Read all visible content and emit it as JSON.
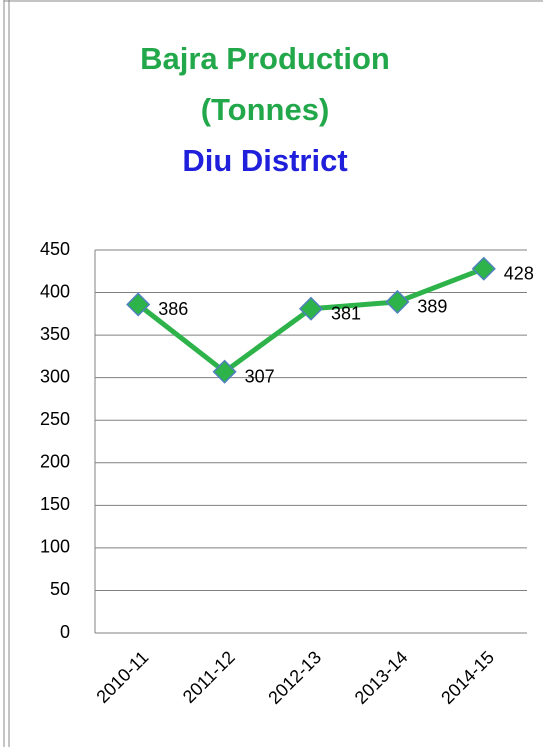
{
  "chart_data": {
    "type": "line",
    "title": [
      "Bajra Production",
      "(Tonnes)"
    ],
    "subtitle": "Diu District",
    "title_color": "#22a84a",
    "subtitle_color": "#1f1fdc",
    "categories": [
      "2010-11",
      "2011-12",
      "2012-13",
      "2013-14",
      "2014-15"
    ],
    "series": [
      {
        "name": "Bajra Production",
        "color": "#2db34a",
        "marker_edge": "#4f81bd",
        "values": [
          386,
          307,
          381,
          389,
          428
        ]
      }
    ],
    "ylim": [
      0,
      450
    ],
    "yticks": [
      0,
      50,
      100,
      150,
      200,
      250,
      300,
      350,
      400,
      450
    ],
    "grid": true
  }
}
